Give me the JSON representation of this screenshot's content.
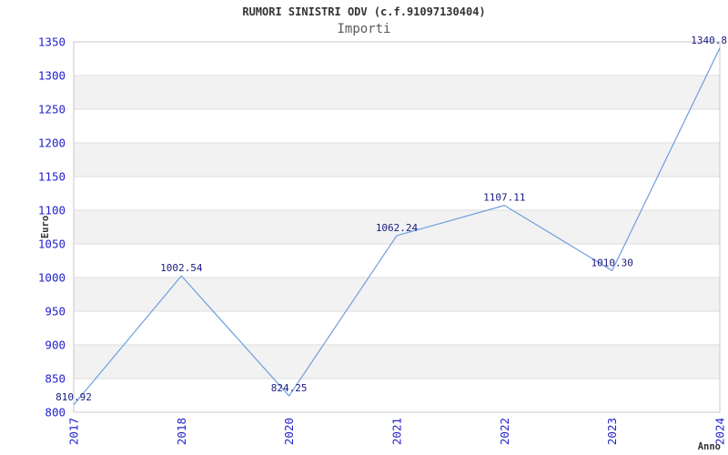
{
  "page": {
    "title": "RUMORI SINISTRI ODV (c.f.91097130404)",
    "subtitle": "Importi"
  },
  "colors": {
    "line": "#6e9fdc",
    "tick_label": "#2222cc",
    "data_label": "#1a1a80",
    "band_fill": "#f2f2f2",
    "gridline": "#dddddd",
    "plot_border": "#c8c8c8",
    "title_text": "#333333",
    "subtitle_text": "#595959",
    "axis_title_text": "#333333"
  },
  "chart_data": {
    "type": "line",
    "title": "RUMORI SINISTRI ODV (c.f.91097130404)",
    "subtitle": "Importi",
    "x": [
      "2017",
      "2018",
      "2020",
      "2021",
      "2022",
      "2023",
      "2024"
    ],
    "values": [
      810.92,
      1002.54,
      824.25,
      1062.24,
      1107.11,
      1010.3,
      1340.8
    ],
    "point_labels": [
      "810.92",
      "1002.54",
      "824.25",
      "1062.24",
      "1107.11",
      "1010.30",
      "1340.8"
    ],
    "last_label_truncated_at_right_edge": true,
    "xlabel": "Anno",
    "ylabel": "Euro",
    "ylim": [
      800,
      1350
    ],
    "ytick_step": 50,
    "yticks": [
      800,
      850,
      900,
      950,
      1000,
      1050,
      1100,
      1150,
      1200,
      1250,
      1300,
      1350
    ],
    "xtick_rotation_deg": 90,
    "grid": "horizontal gridlines with alternating shaded bands",
    "legend": "none",
    "markers": "none"
  }
}
